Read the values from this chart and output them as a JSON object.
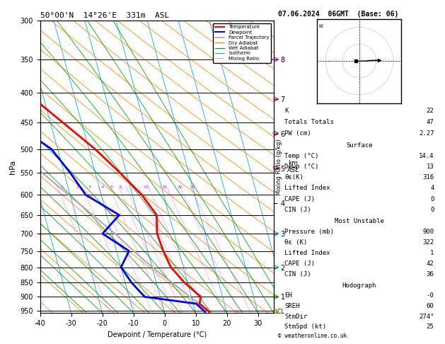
{
  "title_left": "50°00'N  14°26'E  331m  ASL",
  "title_right": "07.06.2024  06GMT  (Base: 06)",
  "xlabel": "Dewpoint / Temperature (°C)",
  "ylabel_left": "hPa",
  "pressure_levels": [
    300,
    350,
    400,
    450,
    500,
    550,
    600,
    650,
    700,
    750,
    800,
    850,
    900,
    950
  ],
  "temp_ticks": [
    -40,
    -30,
    -20,
    -10,
    0,
    10,
    20,
    30
  ],
  "mixing_ratio_values": [
    1,
    2,
    3,
    4,
    5,
    6,
    8,
    10,
    15,
    20,
    25
  ],
  "temperature_profile": {
    "pressure": [
      955,
      925,
      900,
      850,
      800,
      750,
      700,
      650,
      600,
      550,
      500,
      450,
      400,
      350,
      300
    ],
    "temp": [
      14.4,
      12.0,
      13.0,
      9.0,
      6.0,
      5.0,
      4.5,
      6.0,
      3.0,
      -2.0,
      -8.0,
      -16.0,
      -25.0,
      -37.0,
      -48.0
    ]
  },
  "dewpoint_profile": {
    "pressure": [
      955,
      925,
      900,
      850,
      800,
      750,
      700,
      650,
      600,
      550,
      500,
      450,
      400,
      350,
      300
    ],
    "temp": [
      13.0,
      11.0,
      -5.0,
      -8.0,
      -10.0,
      -6.0,
      -13.0,
      -6.0,
      -15.0,
      -18.0,
      -22.0,
      -32.0,
      -42.0,
      -52.0,
      -60.0
    ]
  },
  "parcel_profile": {
    "pressure": [
      955,
      925,
      900,
      850,
      800,
      750,
      700,
      650,
      600,
      550,
      500,
      450,
      400,
      350,
      300
    ],
    "temp": [
      14.4,
      12.0,
      9.5,
      5.0,
      0.0,
      -4.5,
      -9.0,
      -14.5,
      -20.5,
      -27.0,
      -33.0,
      -40.0,
      -48.0,
      -57.0,
      -66.0
    ]
  },
  "color_temp": "#ff0000",
  "color_dewp": "#0000ff",
  "color_parcel": "#aaaaaa",
  "color_dry_adiabat": "#ff8c00",
  "color_wet_adiabat": "#00aa00",
  "color_isotherm": "#00aaff",
  "color_mixing_ratio": "#ff00ff",
  "km_p_map": {
    "1": 900,
    "2": 800,
    "3": 700,
    "4": 620,
    "5": 540,
    "6": 470,
    "7": 410,
    "8": 350
  },
  "wind_barb_km": [
    8,
    7,
    6,
    5,
    3,
    2,
    1
  ],
  "wind_barb_colors": [
    "#ff00ff",
    "#ff00ff",
    "#aa00aa",
    "#aa00aa",
    "#00aaff",
    "#00cccc",
    "#00cc00"
  ],
  "lcl_color": "#aaaa00",
  "info_box": {
    "K": "22",
    "Totals Totals": "47",
    "PW (cm)": "2.27",
    "Temp_surf": "14.4",
    "Dewp_surf": "13",
    "theta_e_surf": "316",
    "LI_surf": "4",
    "CAPE_surf": "0",
    "CIN_surf": "0",
    "Pressure_mu": "900",
    "theta_e_mu": "322",
    "LI_mu": "1",
    "CAPE_mu": "42",
    "CIN_mu": "36",
    "EH": "-0",
    "SREH": "60",
    "StmDir": "274°",
    "StmSpd": "25"
  },
  "background_color": "#ffffff"
}
